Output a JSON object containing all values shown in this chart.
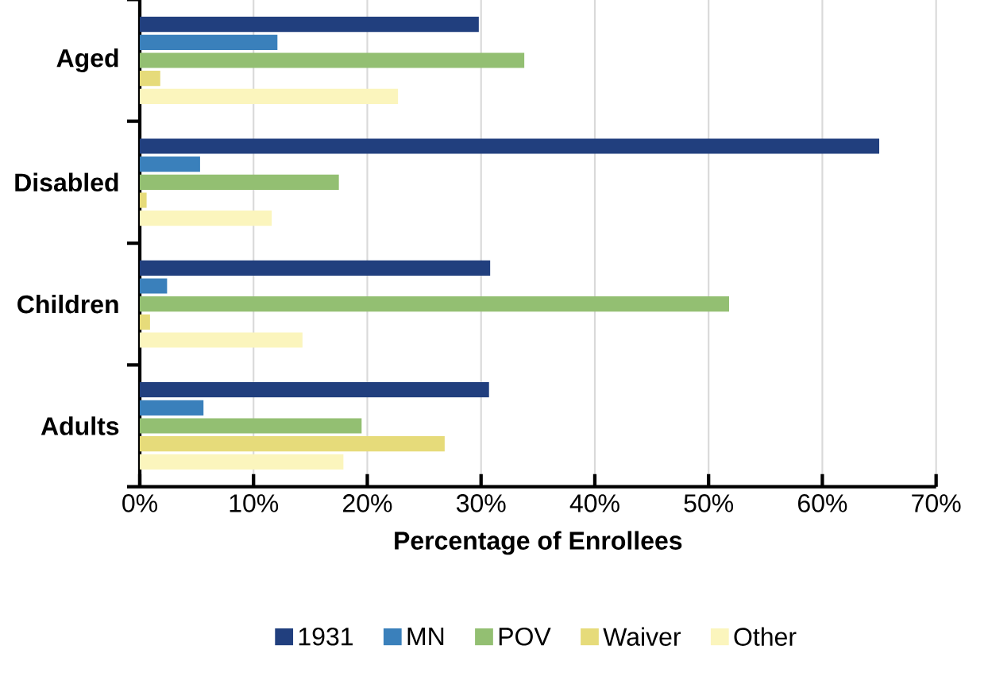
{
  "chart_data": {
    "type": "bar",
    "orientation": "horizontal",
    "xlabel": "Percentage of Enrollees",
    "categories": [
      "Aged",
      "Disabled",
      "Children",
      "Adults"
    ],
    "series": [
      {
        "name": "1931",
        "color": "#213f7e",
        "values": [
          29.8,
          65.0,
          30.8,
          30.7
        ]
      },
      {
        "name": "MN",
        "color": "#3a80bb",
        "values": [
          12.1,
          5.3,
          2.4,
          5.6
        ]
      },
      {
        "name": "POV",
        "color": "#93bf72",
        "values": [
          33.8,
          17.5,
          51.8,
          19.5
        ]
      },
      {
        "name": "Waiver",
        "color": "#e6db7a",
        "values": [
          1.8,
          0.6,
          0.9,
          26.8
        ]
      },
      {
        "name": "Other",
        "color": "#fbf5bd",
        "values": [
          22.7,
          11.6,
          14.3,
          17.9
        ]
      }
    ],
    "xlim": [
      0,
      70
    ],
    "xticks": [
      {
        "value": 0,
        "label": "0%"
      },
      {
        "value": 10,
        "label": "10%"
      },
      {
        "value": 20,
        "label": "20%"
      },
      {
        "value": 30,
        "label": "30%"
      },
      {
        "value": 40,
        "label": "40%"
      },
      {
        "value": 50,
        "label": "50%"
      },
      {
        "value": 60,
        "label": "60%"
      },
      {
        "value": 70,
        "label": "70%"
      }
    ],
    "grid": "x",
    "legend": "bottom"
  }
}
